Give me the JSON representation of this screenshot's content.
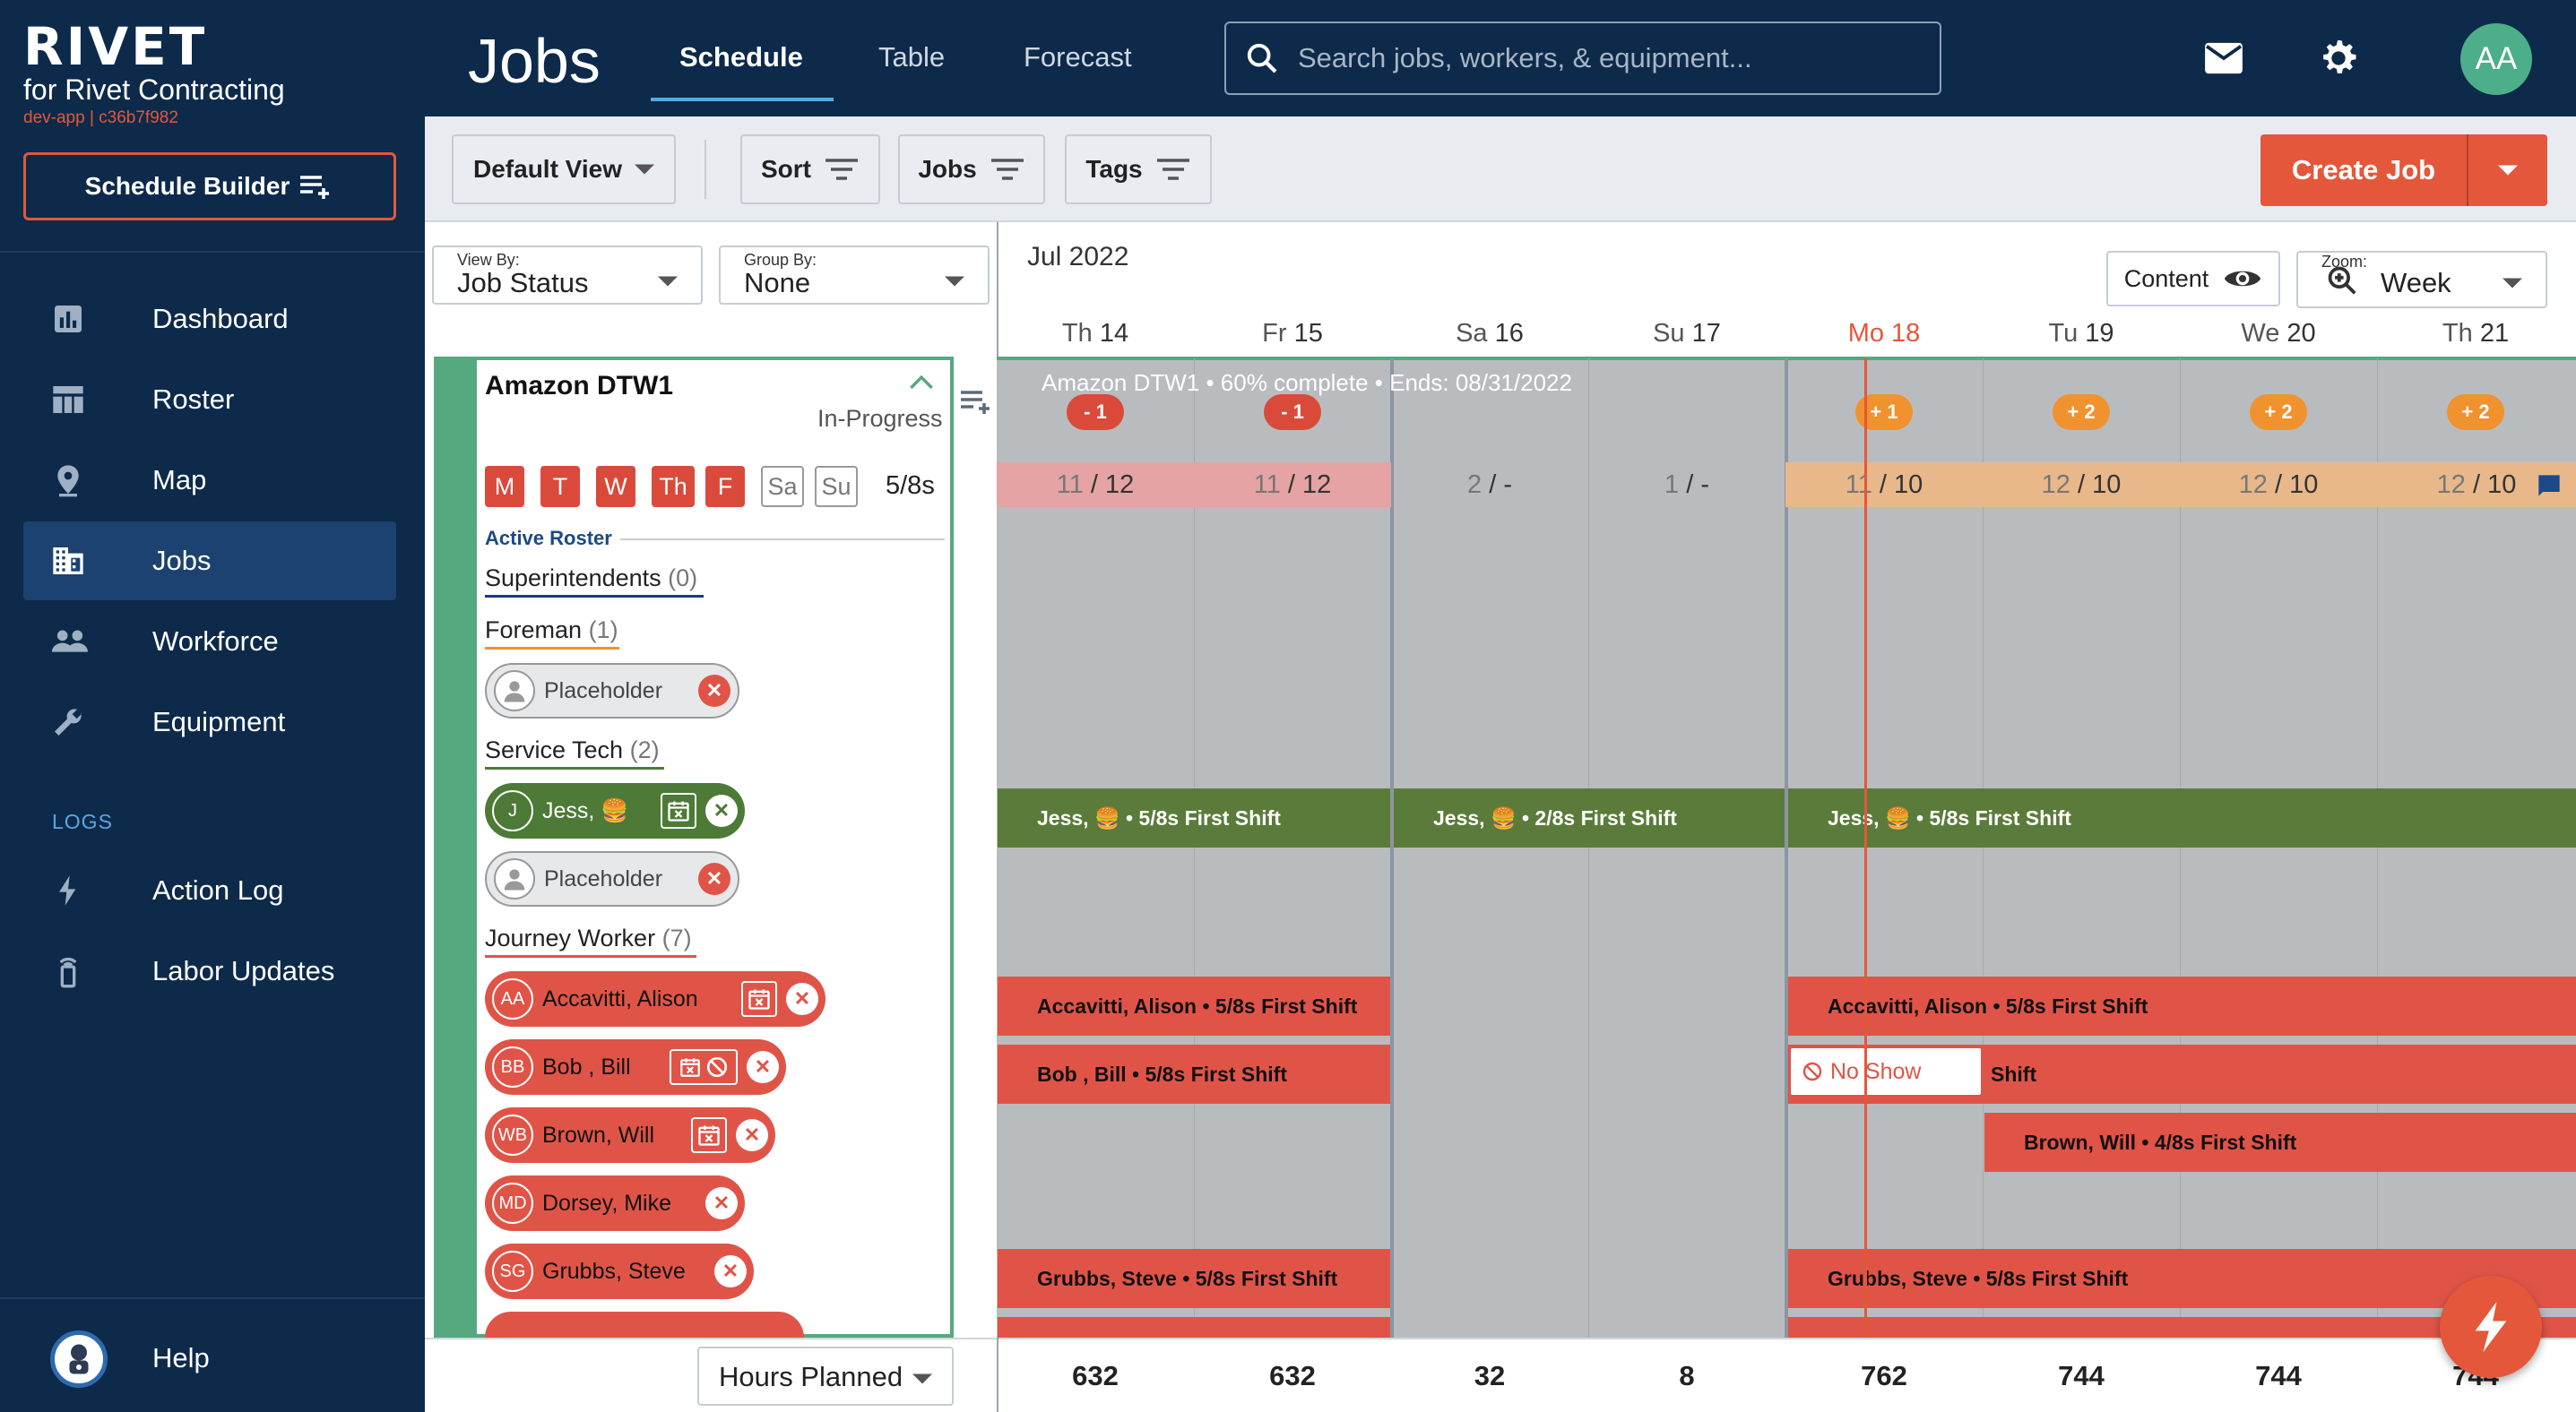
{
  "brand": {
    "name": "RIVET",
    "subtitle": "for Rivet Contracting",
    "dev_tag": "dev-app | c36b7f982"
  },
  "sidebar": {
    "schedule_builder": "Schedule Builder",
    "items": [
      {
        "label": "Dashboard",
        "icon": "dashboard-icon"
      },
      {
        "label": "Roster",
        "icon": "roster-icon"
      },
      {
        "label": "Map",
        "icon": "map-pin-icon"
      },
      {
        "label": "Jobs",
        "icon": "building-icon",
        "active": true
      },
      {
        "label": "Workforce",
        "icon": "people-icon"
      },
      {
        "label": "Equipment",
        "icon": "wrench-icon"
      }
    ],
    "logs_header": "LOGS",
    "log_items": [
      {
        "label": "Action Log",
        "icon": "bolt-icon"
      },
      {
        "label": "Labor Updates",
        "icon": "radio-tower-icon"
      }
    ],
    "help": "Help"
  },
  "header": {
    "title": "Jobs",
    "tabs": [
      {
        "label": "Schedule",
        "active": true
      },
      {
        "label": "Table"
      },
      {
        "label": "Forecast"
      }
    ],
    "search_placeholder": "Search jobs, workers, & equipment...",
    "avatar": "AA"
  },
  "toolbar": {
    "view": "Default View",
    "sort": "Sort",
    "jobs": "Jobs",
    "tags": "Tags",
    "create_job": "Create Job"
  },
  "filters": {
    "view_by": {
      "label": "View By:",
      "value": "Job Status"
    },
    "group_by": {
      "label": "Group By:",
      "value": "None"
    }
  },
  "job": {
    "name": "Amazon DTW1",
    "status": "In-Progress",
    "days": [
      {
        "d": "M",
        "on": true
      },
      {
        "d": "T",
        "on": true
      },
      {
        "d": "W",
        "on": true
      },
      {
        "d": "Th",
        "on": true
      },
      {
        "d": "F",
        "on": true
      },
      {
        "d": "Sa",
        "on": false
      },
      {
        "d": "Su",
        "on": false
      }
    ],
    "shift_summary": "5/8s",
    "roster_label": "Active Roster",
    "roles": {
      "superintendents": {
        "name": "Superintendents",
        "count": "(0)"
      },
      "foreman": {
        "name": "Foreman",
        "count": "(1)"
      },
      "service_tech": {
        "name": "Service Tech",
        "count": "(2)"
      },
      "journey_worker": {
        "name": "Journey Worker",
        "count": "(7)"
      }
    },
    "placeholder": "Placeholder",
    "jess": {
      "initials": "J",
      "name": "Jess, 🍔"
    },
    "workers": [
      {
        "initials": "AA",
        "name": "Accavitti, Alison"
      },
      {
        "initials": "BB",
        "name": "Bob , Bill"
      },
      {
        "initials": "WB",
        "name": "Brown, Will"
      },
      {
        "initials": "MD",
        "name": "Dorsey, Mike"
      },
      {
        "initials": "SG",
        "name": "Grubbs, Steve"
      }
    ]
  },
  "schedule": {
    "month": "Jul 2022",
    "content_label": "Content",
    "zoom": {
      "label": "Zoom:",
      "value": "Week"
    },
    "days": [
      {
        "dow": "Th",
        "day": "14",
        "bubble": "- 1",
        "bubble_type": "neg",
        "assigned": "11",
        "needed": "12",
        "fill": "#e5a3a3"
      },
      {
        "dow": "Fr",
        "day": "15",
        "bubble": "- 1",
        "bubble_type": "neg",
        "assigned": "11",
        "needed": "12",
        "fill": "#e5a3a3"
      },
      {
        "dow": "Sa",
        "day": "16",
        "bubble": "",
        "bubble_type": "",
        "assigned": "2",
        "needed": "-",
        "fill": ""
      },
      {
        "dow": "Su",
        "day": "17",
        "bubble": "",
        "bubble_type": "",
        "assigned": "1",
        "needed": "-",
        "fill": ""
      },
      {
        "dow": "Mo",
        "day": "18",
        "bubble": "+ 1",
        "bubble_type": "pos",
        "assigned": "11",
        "needed": "10",
        "fill": "#e8b88a",
        "today": true
      },
      {
        "dow": "Tu",
        "day": "19",
        "bubble": "+ 2",
        "bubble_type": "pos",
        "assigned": "12",
        "needed": "10",
        "fill": "#e8b88a"
      },
      {
        "dow": "We",
        "day": "20",
        "bubble": "+ 2",
        "bubble_type": "pos",
        "assigned": "12",
        "needed": "10",
        "fill": "#e8b88a"
      },
      {
        "dow": "Th",
        "day": "21",
        "bubble": "+ 2",
        "bubble_type": "pos",
        "assigned": "12",
        "needed": "10",
        "fill": "#e8b88a"
      }
    ],
    "job_meta": "Amazon DTW1 • 60% complete • Ends: 08/31/2022",
    "bars": {
      "jess_1": "Jess, 🍔 • 5/8s First Shift",
      "jess_2": "Jess, 🍔 • 2/8s First Shift",
      "jess_3": "Jess, 🍔 • 5/8s First Shift",
      "acc_1": "Accavitti, Alison • 5/8s First Shift",
      "acc_2": "Accavitti, Alison • 5/8s First Shift",
      "bob_1": "Bob , Bill • 5/8s First Shift",
      "bob_2": "Shift",
      "brown": "Brown, Will • 4/8s First Shift",
      "grubbs_1": "Grubbs, Steve • 5/8s First Shift",
      "grubbs_2": "Grubbs, Steve • 5/8s First Shift"
    },
    "no_show": "No Show"
  },
  "footer": {
    "metric": "Hours Planned",
    "totals": [
      "632",
      "632",
      "32",
      "8",
      "762",
      "744",
      "744",
      "744"
    ]
  },
  "colors": {
    "navy": "#0d2a4a",
    "accent": "#e4573a",
    "green": "#56a97f",
    "shift_green": "#5b7b3a",
    "worker_red": "#e05448"
  }
}
